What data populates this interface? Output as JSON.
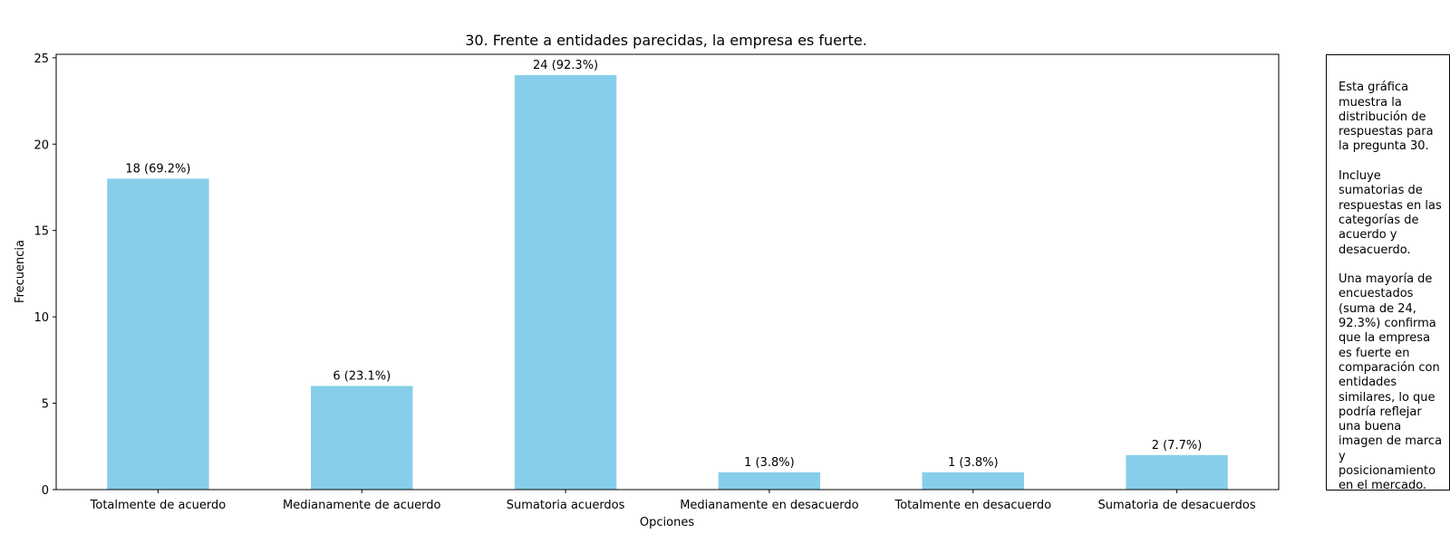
{
  "chart_data": {
    "type": "bar",
    "title": "30. Frente a entidades parecidas, la empresa es fuerte.",
    "xlabel": "Opciones",
    "ylabel": "Frecuencia",
    "categories": [
      "Totalmente de acuerdo",
      "Medianamente de acuerdo",
      "Sumatoria acuerdos",
      "Medianamente en desacuerdo",
      "Totalmente en desacuerdo",
      "Sumatoria de desacuerdos"
    ],
    "values": [
      18,
      6,
      24,
      1,
      1,
      2
    ],
    "data_labels": [
      "18 (69.2%)",
      "6 (23.1%)",
      "24 (92.3%)",
      "1 (3.8%)",
      "1 (3.8%)",
      "2 (7.7%)"
    ],
    "ylim": [
      0,
      25.2
    ],
    "yticks": [
      0,
      5,
      10,
      15,
      20,
      25
    ],
    "grid": false,
    "bar_color": "#87ceeb"
  },
  "annotation": "Esta gráfica\nmuestra la\ndistribución de\nrespuestas para\nla pregunta 30.\n\nIncluye\nsumatorias de\nrespuestas en las\ncategorías de\nacuerdo y\ndesacuerdo.\n\nUna mayoría de\nencuestados\n(suma de 24,\n92.3%) confirma\nque la empresa\nes fuerte en\ncomparación con\nentidades\nsimilares, lo que\npodría reflejar\nuna buena\nimagen de marca\ny\nposicionamiento\nen el mercado."
}
